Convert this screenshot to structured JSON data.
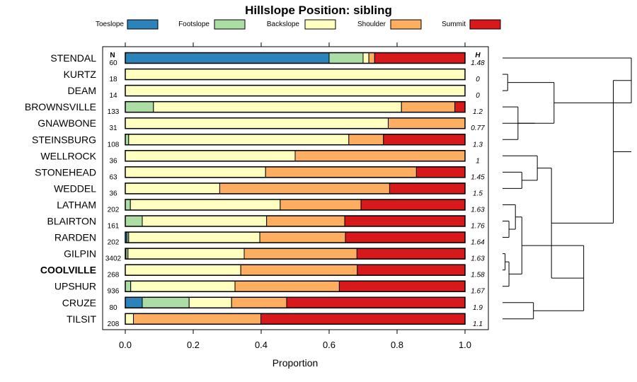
{
  "chart_data": {
    "type": "bar",
    "subtype": "stacked-horizontal-proportion",
    "title": "Hillslope Position: sibling",
    "xlabel": "Proportion",
    "ylabel": "",
    "xlim": [
      0,
      1
    ],
    "xticks": [
      "0.0",
      "0.2",
      "0.4",
      "0.6",
      "0.8",
      "1.0"
    ],
    "n_header": "N",
    "h_header": "H",
    "legend_position": "top",
    "highlight": "COOLVILLE",
    "series": [
      {
        "name": "Toeslope",
        "color": "#2b83ba"
      },
      {
        "name": "Footslope",
        "color": "#abdda4"
      },
      {
        "name": "Backslope",
        "color": "#ffffbf"
      },
      {
        "name": "Shoulder",
        "color": "#fdae61"
      },
      {
        "name": "Summit",
        "color": "#d7191c"
      }
    ],
    "categories": [
      "STENDAL",
      "KURTZ",
      "DEAM",
      "BROWNSVILLE",
      "GNAWBONE",
      "STEINSBURG",
      "WELLROCK",
      "STONEHEAD",
      "WEDDEL",
      "LATHAM",
      "BLAIRTON",
      "RARDEN",
      "GILPIN",
      "COOLVILLE",
      "UPSHUR",
      "CRUZE",
      "TILSIT"
    ],
    "rows": [
      {
        "name": "STENDAL",
        "n": "60",
        "h": "1.48",
        "values": [
          0.6,
          0.1,
          0.017,
          0.017,
          0.266
        ]
      },
      {
        "name": "KURTZ",
        "n": "18",
        "h": "0",
        "values": [
          0,
          0,
          1.0,
          0,
          0
        ]
      },
      {
        "name": "DEAM",
        "n": "14",
        "h": "0",
        "values": [
          0,
          0,
          1.0,
          0,
          0
        ]
      },
      {
        "name": "BROWNSVILLE",
        "n": "133",
        "h": "1.2",
        "values": [
          0,
          0.083,
          0.73,
          0.157,
          0.03
        ]
      },
      {
        "name": "GNAWBONE",
        "n": "31",
        "h": "0.77",
        "values": [
          0,
          0,
          0.774,
          0.226,
          0
        ]
      },
      {
        "name": "STEINSBURG",
        "n": "108",
        "h": "1.3",
        "values": [
          0,
          0.01,
          0.648,
          0.102,
          0.24
        ]
      },
      {
        "name": "WELLROCK",
        "n": "36",
        "h": "1",
        "values": [
          0,
          0,
          0.5,
          0.5,
          0
        ]
      },
      {
        "name": "STONEHEAD",
        "n": "63",
        "h": "1.45",
        "values": [
          0,
          0,
          0.413,
          0.444,
          0.143
        ]
      },
      {
        "name": "WEDDEL",
        "n": "36",
        "h": "1.5",
        "values": [
          0,
          0,
          0.278,
          0.5,
          0.222
        ]
      },
      {
        "name": "LATHAM",
        "n": "202",
        "h": "1.63",
        "values": [
          0,
          0.015,
          0.441,
          0.238,
          0.306
        ]
      },
      {
        "name": "BLAIRTON",
        "n": "161",
        "h": "1.76",
        "values": [
          0,
          0.05,
          0.366,
          0.23,
          0.354
        ]
      },
      {
        "name": "RARDEN",
        "n": "202",
        "h": "1.64",
        "values": [
          0.005,
          0.005,
          0.386,
          0.252,
          0.352
        ]
      },
      {
        "name": "GILPIN",
        "n": "3402",
        "h": "1.63",
        "values": [
          0.002,
          0.006,
          0.342,
          0.332,
          0.318
        ]
      },
      {
        "name": "COOLVILLE",
        "n": "268",
        "h": "1.58",
        "values": [
          0,
          0,
          0.34,
          0.343,
          0.317
        ]
      },
      {
        "name": "UPSHUR",
        "n": "936",
        "h": "1.67",
        "values": [
          0,
          0.016,
          0.307,
          0.307,
          0.37
        ]
      },
      {
        "name": "CRUZE",
        "n": "80",
        "h": "1.9",
        "values": [
          0.05,
          0.138,
          0.125,
          0.162,
          0.525
        ]
      },
      {
        "name": "TILSIT",
        "n": "208",
        "h": "1.1",
        "values": [
          0,
          0,
          0.024,
          0.375,
          0.601
        ]
      }
    ],
    "dendrogram": {
      "leaf_order": [
        "STENDAL",
        "KURTZ",
        "DEAM",
        "BROWNSVILLE",
        "GNAWBONE",
        "STEINSBURG",
        "WELLROCK",
        "STONEHEAD",
        "WEDDEL",
        "LATHAM",
        "BLAIRTON",
        "RARDEN",
        "GILPIN",
        "COOLVILLE",
        "UPSHUR",
        "CRUZE",
        "TILSIT"
      ],
      "tree": [
        [
          "STENDAL",
          [
            [
              [
                "KURTZ",
                "DEAM"
              ]
            ],
            [
              [
                [
                  "BROWNSVILLE",
                  "STEINSBURG"
                ]
              ],
              "GNAWBONE"
            ]
          ]
        ],
        [
          [
            [
              "WELLROCK",
              [
                "STONEHEAD",
                "WEDDEL"
              ]
            ]
          ],
          [
            [
              [
                [
                  "LATHAM",
                  [
                    "BLAIRTON",
                    "RARDEN"
                  ]
                ]
              ],
              [
                [
                  "GILPIN",
                  "COOLVILLE"
                ],
                "UPSHUR"
              ]
            ],
            [
              "CRUZE",
              "TILSIT"
            ]
          ]
        ]
      ],
      "note": "Hierarchical clustering of siblings by hillslope position proportions; merge heights are relative (0 = leaves, 1 = root)."
    }
  }
}
